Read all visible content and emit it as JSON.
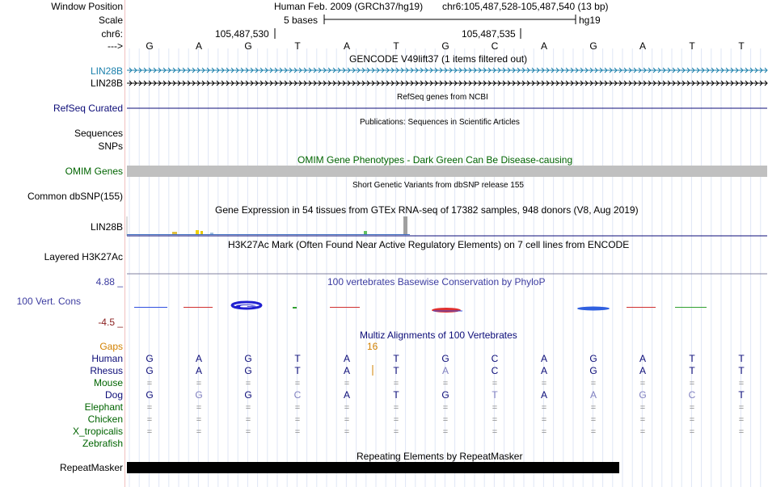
{
  "header": {
    "window_position_label": "Window Position",
    "scale_label": "Scale",
    "chrom_label": "chr6:",
    "arrow_label": "--->",
    "assembly_title": "Human Feb. 2009 (GRCh37/hg19)",
    "window_position": "chr6:105,487,528-105,487,540 (13 bp)",
    "scale_text": "5 bases",
    "scale_db": "hg19",
    "coord_1": "105,487,530",
    "coord_2": "105,487,535"
  },
  "bases": [
    "G",
    "A",
    "G",
    "T",
    "A",
    "T",
    "G",
    "C",
    "A",
    "G",
    "A",
    "T",
    "T"
  ],
  "tracks": {
    "gencode": {
      "title": "GENCODE V49lift37 (1 items filtered out)",
      "items": [
        "LIN28B",
        "LIN28B"
      ],
      "colors": [
        "#1a7fab",
        "#000000"
      ]
    },
    "refseq": {
      "title": "RefSeq genes from NCBI",
      "label": "RefSeq Curated",
      "color": "#0c0c78"
    },
    "publications": {
      "title": "Publications: Sequences in Scientific Articles",
      "label": "Sequences"
    },
    "snps": {
      "label": "SNPs"
    },
    "omim": {
      "title": "OMIM Gene Phenotypes - Dark Green Can Be Disease-causing",
      "label": "OMIM Genes",
      "color": "#006400",
      "bar_color": "#c0c0c0"
    },
    "dbsnp": {
      "title": "Short Genetic Variants from dbSNP release 155",
      "label": "Common dbSNP(155)"
    },
    "gtex": {
      "title": "Gene Expression in 54 tissues from GTEx RNA-seq of 17382 samples, 948 donors (V8, Aug 2019)",
      "label": "LIN28B"
    },
    "h3k27ac": {
      "title": "H3K27Ac Mark (Often Found Near Active Regulatory Elements) on 7 cell lines from ENCODE",
      "label": "Layered H3K27Ac"
    },
    "phylop": {
      "title": "100 vertebrates Basewise Conservation by PhyloP",
      "label": "100 Vert. Cons",
      "max": "4.88 _",
      "min": "-4.5 _",
      "color": "#3c3ca0",
      "min_color": "#8b2020"
    },
    "multiz": {
      "title": "Multiz Alignments of 100 Vertebrates",
      "gaps_label": "Gaps",
      "gap_count": "16",
      "gap_color": "#d28000",
      "species": [
        {
          "name": "Human",
          "color": "#0c0c78",
          "row": [
            "G",
            "A",
            "G",
            "T",
            "A",
            "T",
            "G",
            "C",
            "A",
            "G",
            "A",
            "T",
            "T"
          ]
        },
        {
          "name": "Rhesus",
          "color": "#0c0c78",
          "row": [
            "G",
            "A",
            "G",
            "T",
            "A",
            "T",
            "A",
            "C",
            "A",
            "G",
            "A",
            "T",
            "T"
          ]
        },
        {
          "name": "Mouse",
          "color": "#006400",
          "row": [
            "=",
            "=",
            "=",
            "=",
            "=",
            "=",
            "=",
            "=",
            "=",
            "=",
            "=",
            "=",
            "="
          ]
        },
        {
          "name": "Dog",
          "color": "#0c0c78",
          "row": [
            "G",
            "G",
            "G",
            "C",
            "A",
            "T",
            "G",
            "T",
            "A",
            "A",
            "G",
            "C",
            "T"
          ]
        },
        {
          "name": "Elephant",
          "color": "#006400",
          "row": [
            "=",
            "=",
            "=",
            "=",
            "=",
            "=",
            "=",
            "=",
            "=",
            "=",
            "=",
            "=",
            "="
          ]
        },
        {
          "name": "Chicken",
          "color": "#006400",
          "row": [
            "=",
            "=",
            "=",
            "=",
            "=",
            "=",
            "=",
            "=",
            "=",
            "=",
            "=",
            "=",
            "="
          ]
        },
        {
          "name": "X_tropicalis",
          "color": "#006400",
          "row": [
            "=",
            "=",
            "=",
            "=",
            "=",
            "=",
            "=",
            "=",
            "=",
            "=",
            "=",
            "=",
            "="
          ]
        },
        {
          "name": "Zebrafish",
          "color": "#006400",
          "row": []
        }
      ]
    },
    "repeatmasker": {
      "title": "Repeating Elements by RepeatMasker",
      "label": "RepeatMasker"
    }
  }
}
